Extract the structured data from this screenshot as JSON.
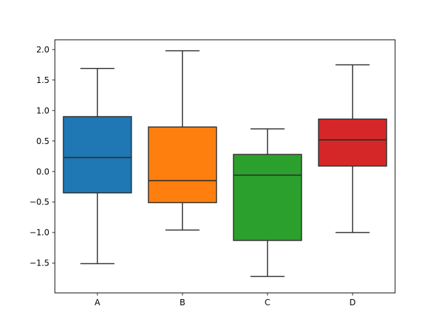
{
  "figure": {
    "background": "#ffffff",
    "axes_edge_color": "#000000",
    "tick_color": "#000000",
    "element_line_color": "#2f2f2f"
  },
  "chart_data": {
    "type": "box",
    "title": "",
    "xlabel": "",
    "ylabel": "",
    "grid": false,
    "legend": "none",
    "categories": [
      "A",
      "B",
      "C",
      "D"
    ],
    "series": [
      {
        "name": "A",
        "whislo": -1.51,
        "q1": -0.35,
        "med": 0.23,
        "q3": 0.9,
        "whishi": 1.69,
        "color": "#1f77b4"
      },
      {
        "name": "B",
        "whislo": -0.96,
        "q1": -0.51,
        "med": -0.15,
        "q3": 0.73,
        "whishi": 1.98,
        "color": "#ff7f0e"
      },
      {
        "name": "C",
        "whislo": -1.72,
        "q1": -1.13,
        "med": -0.06,
        "q3": 0.28,
        "whishi": 0.7,
        "color": "#2ca02c"
      },
      {
        "name": "D",
        "whislo": -1.0,
        "q1": 0.09,
        "med": 0.52,
        "q3": 0.86,
        "whishi": 1.75,
        "color": "#d62728"
      }
    ],
    "yticks": [
      2.0,
      1.5,
      1.0,
      0.5,
      0.0,
      -0.5,
      -1.0,
      -1.5
    ],
    "ytick_labels": [
      "2.0",
      "1.5",
      "1.0",
      "0.5",
      "0.0",
      "−0.5",
      "−1.0",
      "−1.5"
    ],
    "xtick_labels": [
      "A",
      "B",
      "C",
      "D"
    ],
    "ylim": [
      -1.99,
      2.16
    ],
    "xlim": [
      0.5,
      4.5
    ],
    "box_width": 0.8,
    "cap_ratio": 0.5
  }
}
